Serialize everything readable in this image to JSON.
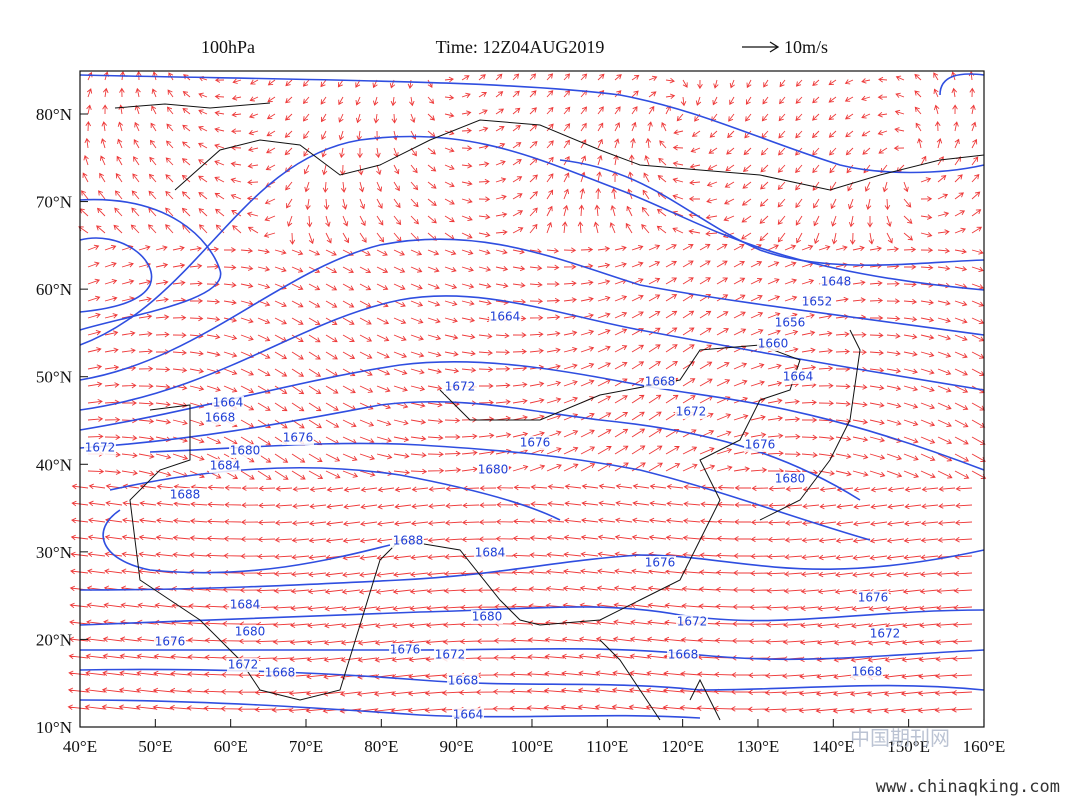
{
  "header": {
    "level": "100hPa",
    "time": "Time: 12Z04AUG2019",
    "scale": "10m/s"
  },
  "axes": {
    "y_labels": [
      "80°N",
      "70°N",
      "60°N",
      "50°N",
      "40°N",
      "30°N",
      "20°N",
      "10°N"
    ],
    "x_labels": [
      "40°E",
      "50°E",
      "60°E",
      "70°E",
      "80°E",
      "90°E",
      "100°E",
      "110°E",
      "120°E",
      "130°E",
      "140°E",
      "150°E",
      "160°E"
    ]
  },
  "contour_labels": [
    "1648",
    "1652",
    "1656",
    "1660",
    "1664",
    "1664",
    "1668",
    "1672",
    "1676",
    "1680",
    "1672",
    "1664",
    "1668",
    "1676",
    "1672",
    "1680",
    "1684",
    "1688",
    "1676",
    "1680",
    "1688",
    "1684",
    "1676",
    "1684",
    "1680",
    "1676",
    "1680",
    "1676",
    "1672",
    "1672",
    "1668",
    "1668",
    "1664",
    "1672",
    "1668",
    "1676",
    "1672",
    "1668"
  ],
  "watermark": {
    "cn": "中国期刊网",
    "url": "www.chinaqking.com"
  }
}
